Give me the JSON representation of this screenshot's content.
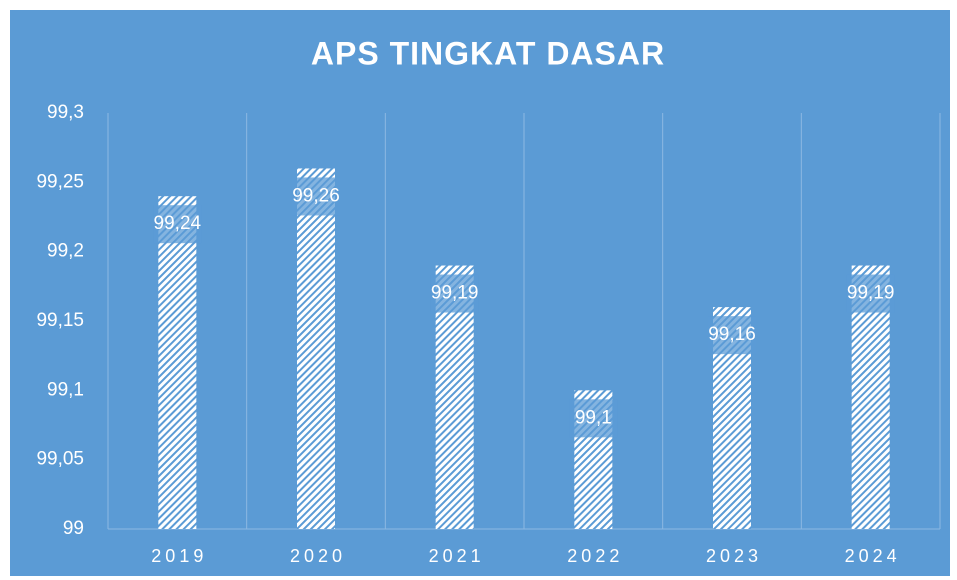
{
  "chart_data": {
    "type": "bar",
    "title": "APS TINGKAT DASAR",
    "categories": [
      "2019",
      "2020",
      "2021",
      "2022",
      "2023",
      "2024"
    ],
    "values": [
      99.24,
      99.26,
      99.19,
      99.1,
      99.16,
      99.19
    ],
    "value_labels": [
      "99,24",
      "99,26",
      "99,19",
      "99,1",
      "99,16",
      "99,19"
    ],
    "color": "#ffffff",
    "ylim": [
      99,
      99.3
    ],
    "yticks": [
      99,
      {
        "value": 99.05,
        "label": "99,05"
      },
      {
        "value": 99.1,
        "label": "99,1"
      },
      {
        "value": 99.15,
        "label": "99,15"
      },
      {
        "value": 99.2,
        "label": "99,2"
      },
      {
        "value": 99.25,
        "label": "99,25"
      },
      {
        "value": 99.3,
        "label": "99,3"
      }
    ],
    "grid": false
  }
}
